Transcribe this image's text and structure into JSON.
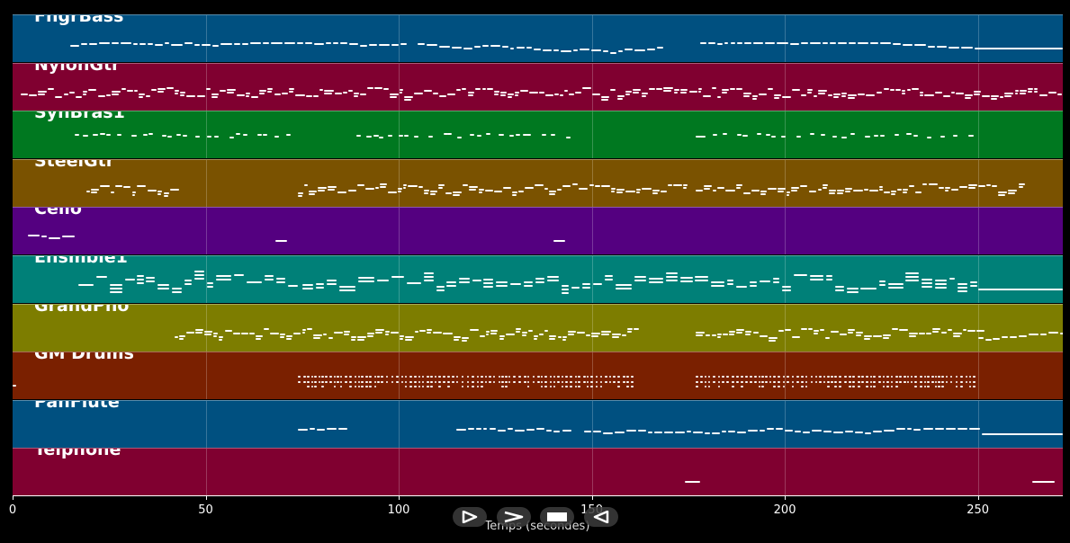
{
  "tracks": [
    {
      "name": "FngrBass",
      "color": "#005080",
      "patterns": [
        [
          15,
          102,
          "wave",
          2.2,
          1.2
        ],
        [
          105,
          167,
          "wave",
          2.2,
          1.2
        ],
        [
          178,
          250,
          "wave",
          2.2,
          1.2
        ],
        [
          251,
          272,
          "flat",
          2.2,
          1.2
        ]
      ]
    },
    {
      "name": "NylonGtr",
      "color": "#800030",
      "patterns": [
        [
          2,
          250,
          "dense",
          1.8,
          1.0
        ],
        [
          251,
          272,
          "dense",
          1.8,
          1.0
        ]
      ]
    },
    {
      "name": "SynBras1",
      "color": "#007820",
      "patterns": [
        [
          16,
          73,
          "sparse",
          4.0,
          1.0
        ],
        [
          89,
          147,
          "sparse",
          4.0,
          1.0
        ],
        [
          177,
          250,
          "sparse",
          4.0,
          1.0
        ]
      ]
    },
    {
      "name": "SteelGtr",
      "color": "#7a5200",
      "patterns": [
        [
          19,
          42,
          "dense",
          1.8,
          1.0
        ],
        [
          74,
          174,
          "dense",
          1.8,
          1.0
        ],
        [
          177,
          262,
          "dense",
          1.8,
          1.0
        ]
      ]
    },
    {
      "name": "Cello",
      "color": "#540080",
      "patterns": [
        [
          4,
          15,
          "wave",
          2.5,
          1.0
        ],
        [
          68,
          71,
          "flat",
          2.0,
          1.0
        ],
        [
          140,
          143,
          "flat",
          2.0,
          1.0
        ]
      ]
    },
    {
      "name": "Ensmble1",
      "color": "#008078",
      "patterns": [
        [
          17,
          72,
          "chord",
          3.0,
          2.2
        ],
        [
          75,
          250,
          "chord",
          3.0,
          2.2
        ],
        [
          250,
          272,
          "flat",
          3.0,
          2.0
        ]
      ]
    },
    {
      "name": "GrandPno",
      "color": "#7d7d00",
      "patterns": [
        [
          42,
          161,
          "dense",
          1.8,
          1.0
        ],
        [
          177,
          250,
          "dense",
          1.8,
          1.0
        ],
        [
          250,
          272,
          "wave",
          2.0,
          1.0
        ]
      ]
    },
    {
      "name": "GM Drums",
      "color": "#7a2000",
      "patterns": [
        [
          0,
          1,
          "flat",
          1.0,
          1.0
        ],
        [
          74,
          161,
          "drums",
          2.0,
          0.8
        ],
        [
          177,
          250,
          "drums",
          2.0,
          0.8
        ]
      ]
    },
    {
      "name": "PanFlute",
      "color": "#005080",
      "patterns": [
        [
          74,
          87,
          "wave",
          2.0,
          1.2
        ],
        [
          115,
          145,
          "wave",
          2.0,
          1.2
        ],
        [
          148,
          250,
          "wave",
          2.0,
          1.2
        ],
        [
          251,
          272,
          "flat",
          2.0,
          1.2
        ]
      ]
    },
    {
      "name": "Telphone",
      "color": "#800030",
      "patterns": [
        [
          174,
          178,
          "flat",
          4.0,
          1.0
        ],
        [
          264,
          270,
          "flat",
          4.0,
          1.0
        ]
      ]
    }
  ],
  "xaxis": {
    "label": "Temps (secondes)",
    "min": 0,
    "max": 272,
    "ticks": [
      {
        "value": 0,
        "label": "0"
      },
      {
        "value": 50,
        "label": "50"
      },
      {
        "value": 100,
        "label": "100"
      },
      {
        "value": 150,
        "label": "150"
      },
      {
        "value": 200,
        "label": "200"
      },
      {
        "value": 250,
        "label": "250"
      }
    ]
  },
  "transport": [
    {
      "name": "play-button",
      "icon": "play-icon"
    },
    {
      "name": "fast-forward-button",
      "icon": "forward-icon"
    },
    {
      "name": "stop-button",
      "icon": "stop-icon"
    },
    {
      "name": "rewind-button",
      "icon": "rewind-icon"
    }
  ]
}
